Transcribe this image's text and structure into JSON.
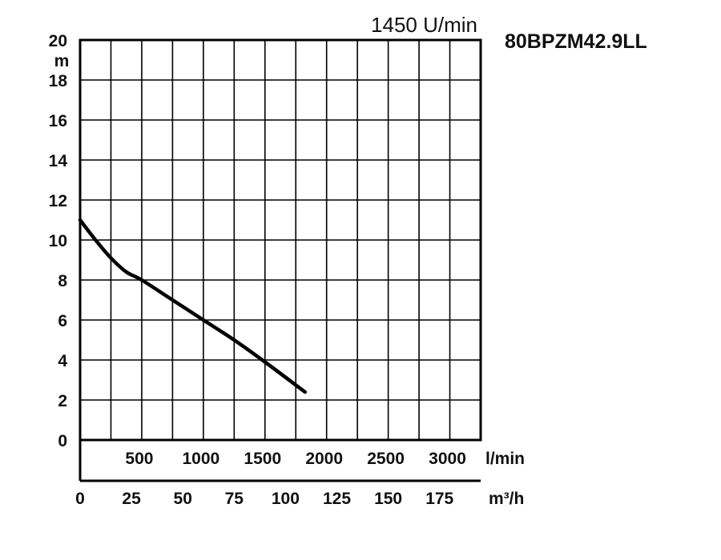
{
  "chart_data": {
    "type": "line",
    "title": "80BPZM42.9LL",
    "subtitle": "1450 U/min",
    "ylabel": "m",
    "ylim": [
      0,
      20
    ],
    "y_ticks": [
      "0",
      "2",
      "4",
      "6",
      "8",
      "10",
      "12",
      "14",
      "16",
      "18",
      "20"
    ],
    "x_primary": {
      "unit": "l/min",
      "ticks": [
        "500",
        "1000",
        "1500",
        "2000",
        "2500",
        "3000"
      ],
      "tick_values": [
        500,
        1000,
        1500,
        2000,
        2500,
        3000
      ]
    },
    "x_secondary": {
      "unit": "m³/h",
      "ticks": [
        "0",
        "25",
        "50",
        "75",
        "100",
        "125",
        "150",
        "175"
      ],
      "tick_values": [
        0,
        25,
        50,
        75,
        100,
        125,
        150,
        175
      ]
    },
    "xlim_lmin": [
      0,
      3250
    ],
    "grid": true,
    "series": [
      {
        "x_lmin": [
          0,
          125,
          250,
          375,
          500,
          750,
          1000,
          1250,
          1500,
          1825
        ],
        "y": [
          11.0,
          10.0,
          9.1,
          8.4,
          8.0,
          7.0,
          6.0,
          5.0,
          3.9,
          2.4
        ]
      }
    ]
  }
}
